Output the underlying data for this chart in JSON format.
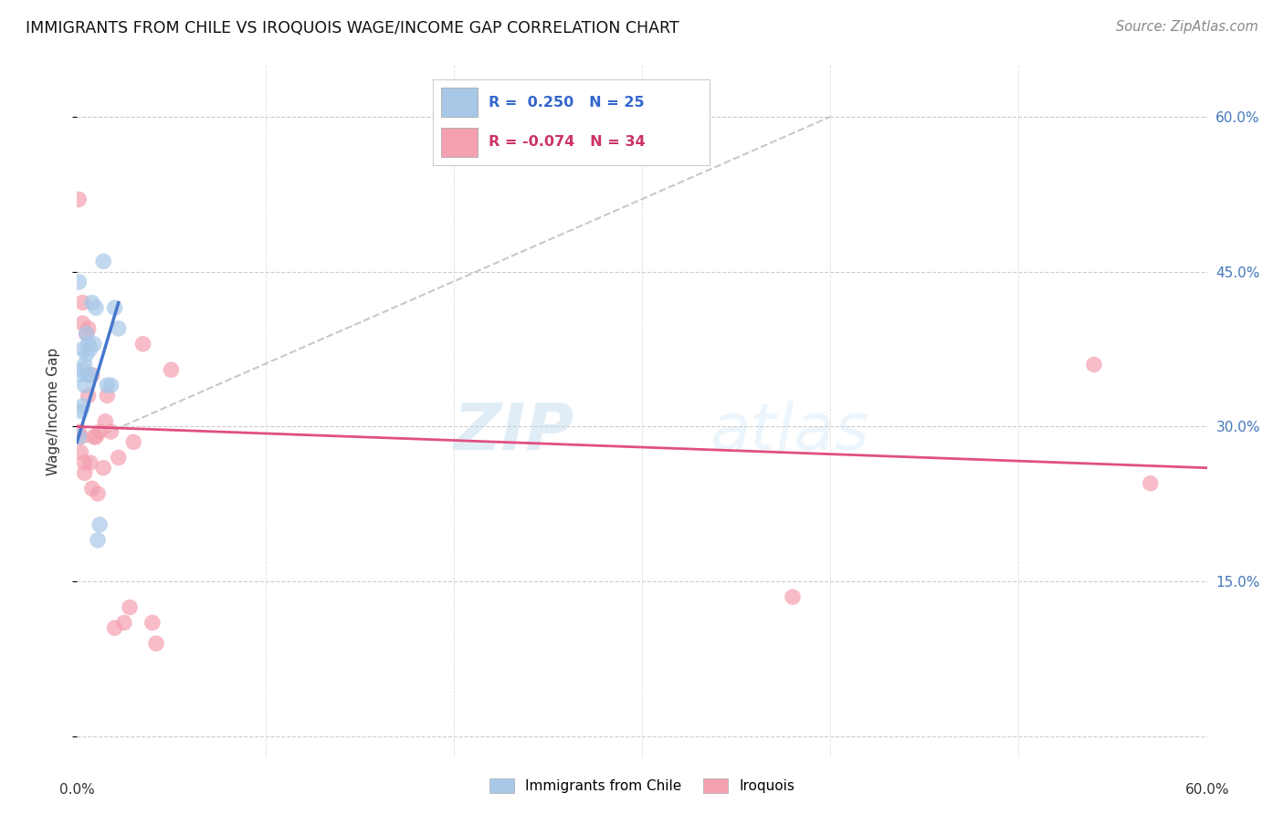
{
  "title": "IMMIGRANTS FROM CHILE VS IROQUOIS WAGE/INCOME GAP CORRELATION CHART",
  "source": "Source: ZipAtlas.com",
  "ylabel": "Wage/Income Gap",
  "legend_label1": "Immigrants from Chile",
  "legend_label2": "Iroquois",
  "r1": 0.25,
  "n1": 25,
  "r2": -0.074,
  "n2": 34,
  "xlim": [
    0.0,
    0.6
  ],
  "ylim": [
    -0.02,
    0.65
  ],
  "yticks": [
    0.0,
    0.15,
    0.3,
    0.45,
    0.6
  ],
  "ytick_labels": [
    "",
    "15.0%",
    "30.0%",
    "45.0%",
    "60.0%"
  ],
  "color_blue": "#a8c8e8",
  "color_pink": "#f4a0b0",
  "color_blue_line": "#4477cc",
  "color_pink_line": "#e05080",
  "color_dashed": "#bbbbbb",
  "watermark_zip": "ZIP",
  "watermark_atlas": "atlas",
  "chile_x": [
    0.001,
    0.001,
    0.002,
    0.002,
    0.003,
    0.003,
    0.003,
    0.004,
    0.004,
    0.005,
    0.005,
    0.006,
    0.006,
    0.007,
    0.007,
    0.008,
    0.009,
    0.01,
    0.011,
    0.012,
    0.014,
    0.016,
    0.018,
    0.02,
    0.022
  ],
  "chile_y": [
    0.29,
    0.44,
    0.315,
    0.35,
    0.32,
    0.355,
    0.375,
    0.34,
    0.36,
    0.37,
    0.39,
    0.35,
    0.38,
    0.35,
    0.375,
    0.42,
    0.38,
    0.415,
    0.19,
    0.205,
    0.46,
    0.34,
    0.34,
    0.415,
    0.395
  ],
  "iroquois_x": [
    0.001,
    0.001,
    0.002,
    0.002,
    0.003,
    0.003,
    0.004,
    0.004,
    0.005,
    0.006,
    0.006,
    0.007,
    0.008,
    0.008,
    0.009,
    0.01,
    0.011,
    0.012,
    0.014,
    0.015,
    0.016,
    0.018,
    0.02,
    0.022,
    0.025,
    0.028,
    0.03,
    0.035,
    0.04,
    0.042,
    0.05,
    0.38,
    0.54,
    0.57
  ],
  "iroquois_y": [
    0.295,
    0.52,
    0.275,
    0.29,
    0.42,
    0.4,
    0.255,
    0.265,
    0.39,
    0.33,
    0.395,
    0.265,
    0.24,
    0.35,
    0.29,
    0.29,
    0.235,
    0.295,
    0.26,
    0.305,
    0.33,
    0.295,
    0.105,
    0.27,
    0.11,
    0.125,
    0.285,
    0.38,
    0.11,
    0.09,
    0.355,
    0.135,
    0.36,
    0.245
  ],
  "blue_line_x": [
    0.0,
    0.022
  ],
  "blue_line_y": [
    0.285,
    0.42
  ],
  "pink_line_x": [
    0.0,
    0.6
  ],
  "pink_line_y": [
    0.3,
    0.26
  ],
  "dashed_line_x": [
    0.005,
    0.4
  ],
  "dashed_line_y": [
    0.285,
    0.6
  ]
}
